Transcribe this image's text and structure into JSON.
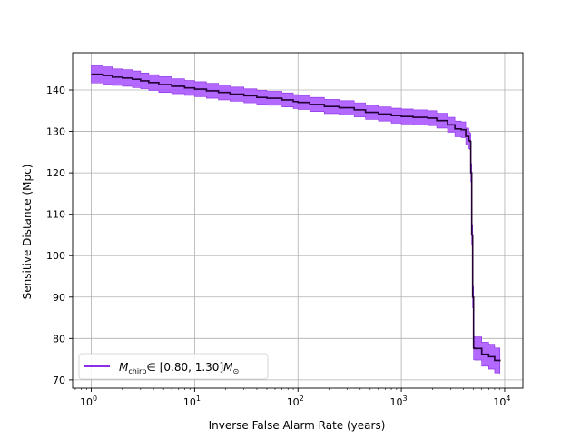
{
  "chart_data": {
    "type": "line",
    "title": "",
    "xlabel": "Inverse False Alarm Rate (years)",
    "ylabel": "Sensitive Distance (Mpc)",
    "x_scale": "log",
    "xlim": [
      0.66,
      15000
    ],
    "ylim": [
      68,
      149
    ],
    "x_ticks": [
      1,
      10,
      100,
      1000,
      10000
    ],
    "x_tick_labels": [
      {
        "base": "10",
        "exp": "0"
      },
      {
        "base": "10",
        "exp": "1"
      },
      {
        "base": "10",
        "exp": "2"
      },
      {
        "base": "10",
        "exp": "3"
      },
      {
        "base": "10",
        "exp": "4"
      }
    ],
    "y_ticks": [
      70,
      80,
      90,
      100,
      110,
      120,
      130,
      140
    ],
    "y_tick_labels": [
      "70",
      "80",
      "90",
      "100",
      "110",
      "120",
      "130",
      "140"
    ],
    "grid": true,
    "legend_position": "lower-left",
    "colors": {
      "line": "#220033",
      "band": "#a64dff",
      "band_edge": "#8a2be2",
      "legend_line": "#7f10e6",
      "grid": "#b0b0b0"
    },
    "series": [
      {
        "name": "M_chirp ∈ [0.80, 1.30] M_⊙",
        "legend_parts": {
          "sym": "M",
          "sub": "chirp",
          "range": "∈ [0.80, 1.30]",
          "unit_sub": "⊙"
        },
        "x": [
          1.0,
          1.3,
          1.6,
          2.0,
          2.5,
          3.0,
          3.6,
          4.5,
          6.0,
          8.0,
          10,
          13,
          17,
          22,
          30,
          40,
          50,
          70,
          90,
          100,
          130,
          180,
          250,
          350,
          450,
          600,
          800,
          1000,
          1300,
          1800,
          2200,
          2800,
          3300,
          3800,
          4200,
          4500,
          4600,
          4700,
          4800,
          4900,
          5000,
          5100,
          5500,
          6000,
          7000,
          8000,
          9000
        ],
        "y": [
          143.8,
          143.5,
          143.1,
          142.9,
          142.6,
          142.2,
          141.8,
          141.3,
          140.9,
          140.5,
          140.2,
          139.8,
          139.4,
          139.0,
          138.6,
          138.2,
          138.0,
          137.6,
          137.2,
          137.0,
          136.5,
          136.0,
          135.7,
          135.2,
          134.6,
          134.2,
          133.8,
          133.6,
          133.4,
          133.2,
          132.6,
          131.6,
          130.6,
          130.4,
          128.8,
          127.8,
          127.6,
          120.0,
          105.0,
          90.0,
          77.7,
          77.6,
          77.6,
          76.2,
          75.6,
          74.7,
          74.5
        ],
        "band_half_width": [
          2.1,
          2.1,
          2.0,
          2.0,
          2.0,
          1.9,
          1.9,
          1.9,
          1.8,
          1.8,
          1.8,
          1.8,
          1.8,
          1.7,
          1.7,
          1.7,
          1.7,
          1.7,
          1.7,
          1.7,
          1.7,
          1.7,
          1.7,
          1.7,
          1.7,
          1.7,
          1.8,
          1.8,
          1.8,
          1.8,
          1.8,
          1.8,
          1.9,
          1.9,
          2.0,
          2.0,
          2.0,
          2.2,
          2.5,
          2.6,
          2.8,
          2.8,
          2.8,
          2.9,
          3.0,
          3.0,
          3.0
        ]
      }
    ]
  }
}
